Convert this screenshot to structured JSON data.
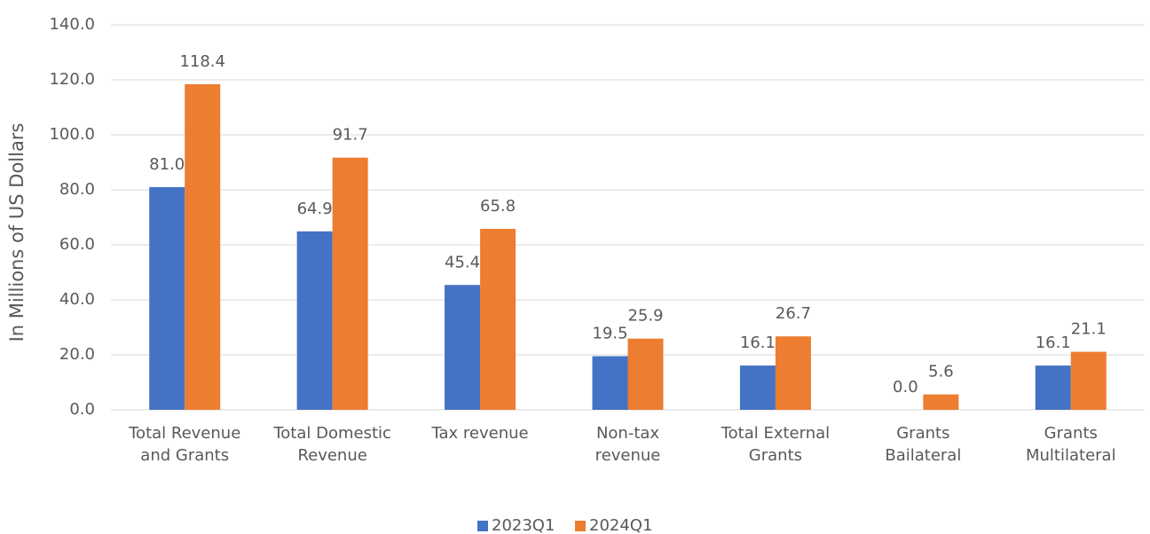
{
  "chart_data": {
    "type": "bar",
    "y_label": "In Millions of US Dollars",
    "categories": [
      [
        "Total Revenue",
        "and Grants"
      ],
      [
        "Total Domestic",
        "Revenue"
      ],
      [
        "Tax revenue"
      ],
      [
        "Non-tax",
        "revenue"
      ],
      [
        "Total External",
        "Grants"
      ],
      [
        "Grants",
        "Bailateral"
      ],
      [
        "Grants",
        "Multilateral"
      ]
    ],
    "series": [
      {
        "name": "2023Q1",
        "color": "#4472c4",
        "values": [
          81.0,
          64.9,
          45.4,
          19.5,
          16.1,
          0.0,
          16.1
        ],
        "value_labels": [
          "81.0",
          "64.9",
          "45.4",
          "19.5",
          "16.1",
          "0.0",
          "16.1"
        ]
      },
      {
        "name": "2024Q1",
        "color": "#ed7d31",
        "values": [
          118.4,
          91.7,
          65.8,
          25.9,
          26.7,
          5.6,
          21.1
        ],
        "value_labels": [
          "118.4",
          "91.7",
          "65.8",
          "25.9",
          "26.7",
          "5.6",
          "21.1"
        ]
      }
    ],
    "ylim": [
      0,
      140
    ],
    "yticks": [
      {
        "value": 0,
        "label": "0.0"
      },
      {
        "value": 20,
        "label": "20.0"
      },
      {
        "value": 40,
        "label": "40.0"
      },
      {
        "value": 60,
        "label": "60.0"
      },
      {
        "value": 80,
        "label": "80.0"
      },
      {
        "value": 100,
        "label": "100.0"
      },
      {
        "value": 120,
        "label": "120.0"
      },
      {
        "value": 140,
        "label": "140.0"
      }
    ],
    "grid": true,
    "legend": "bottom"
  }
}
